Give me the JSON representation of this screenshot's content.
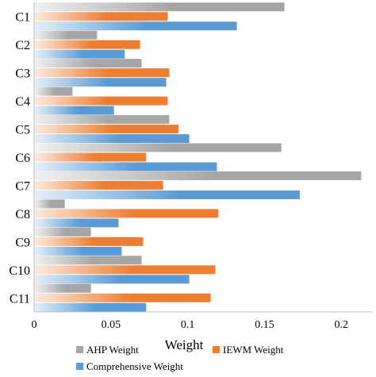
{
  "chart_data": {
    "type": "bar",
    "orientation": "horizontal",
    "categories": [
      "C1",
      "C2",
      "C3",
      "C4",
      "C5",
      "C6",
      "C7",
      "C8",
      "C9",
      "C10",
      "C11"
    ],
    "series": [
      {
        "name": "AHP Weight",
        "color": "#a6a6a6",
        "values": [
          0.163,
          0.041,
          0.07,
          0.025,
          0.088,
          0.161,
          0.213,
          0.02,
          0.037,
          0.07,
          0.037
        ]
      },
      {
        "name": "IEWM Weight",
        "color": "#ed7d31",
        "values": [
          0.087,
          0.069,
          0.088,
          0.087,
          0.094,
          0.073,
          0.084,
          0.12,
          0.071,
          0.118,
          0.115
        ]
      },
      {
        "name": "Comprehensive Weight",
        "color": "#5b9bd5",
        "values": [
          0.132,
          0.059,
          0.086,
          0.052,
          0.101,
          0.119,
          0.173,
          0.055,
          0.057,
          0.101,
          0.073
        ]
      }
    ],
    "xlabel": "Weight",
    "xlim": [
      0,
      0.22
    ],
    "xticks": [
      0,
      0.05,
      0.1,
      0.15,
      0.2
    ],
    "xtick_labels": [
      "0",
      "0.05",
      "0.1",
      "0.15",
      "0.2"
    ],
    "grid": false,
    "legend_position": "bottom"
  }
}
